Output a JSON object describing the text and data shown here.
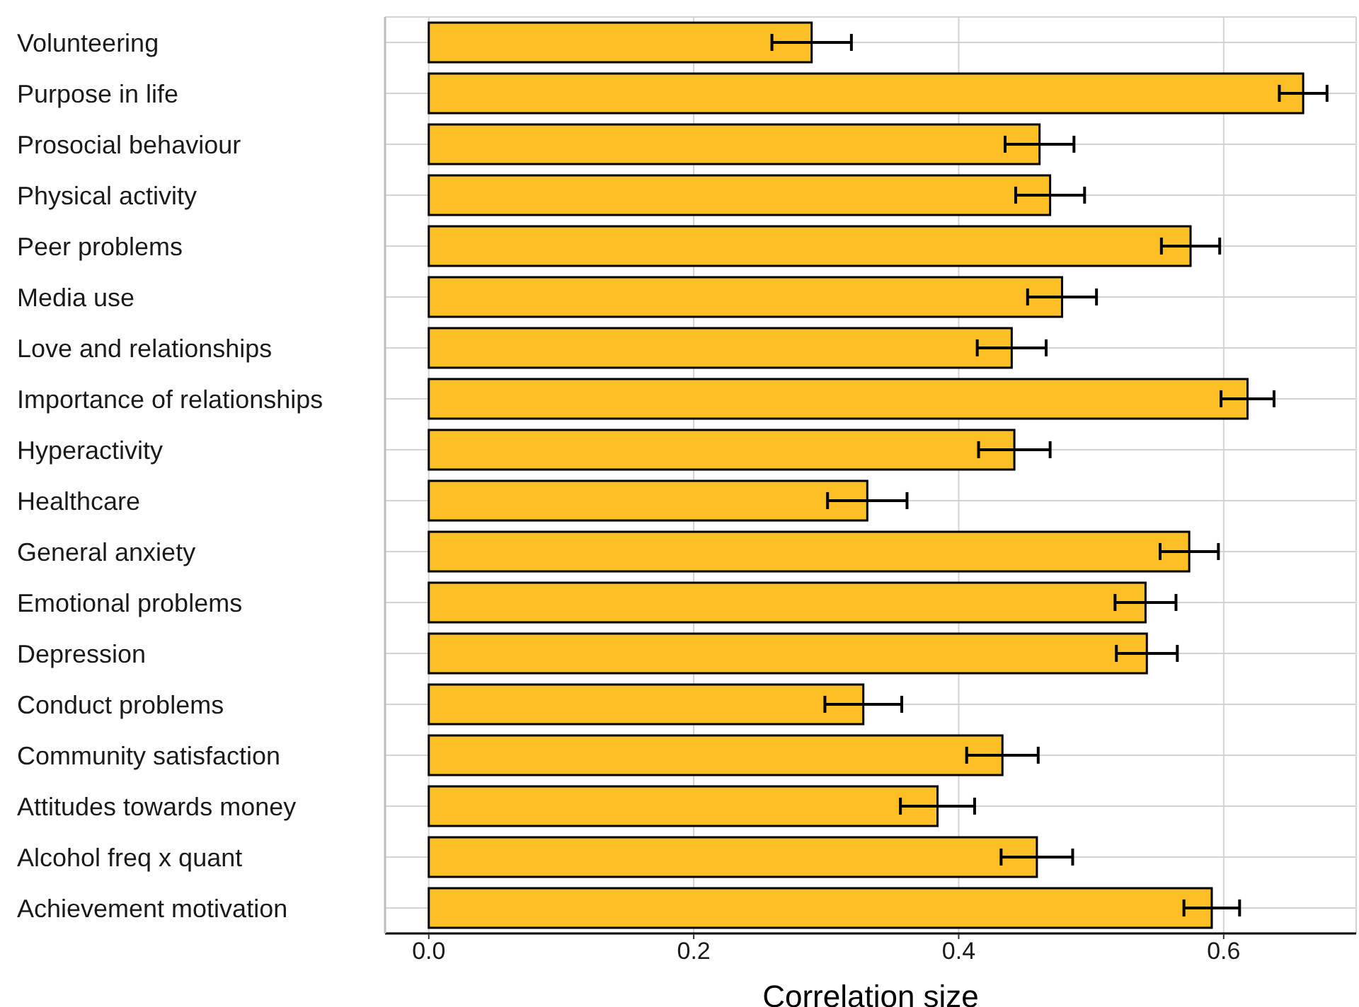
{
  "chart_data": {
    "type": "bar",
    "orientation": "horizontal",
    "xlabel": "Correlation size",
    "categories": [
      "Volunteering",
      "Purpose in life",
      "Prosocial behaviour",
      "Physical activity",
      "Peer problems",
      "Media use",
      "Love and relationships",
      "Importance of relationships",
      "Hyperactivity",
      "Healthcare",
      "General anxiety",
      "Emotional problems",
      "Depression",
      "Conduct problems",
      "Community satisfaction",
      "Attitudes towards money",
      "Alcohol freq x quant",
      "Achievement motivation"
    ],
    "values": [
      0.289,
      0.66,
      0.461,
      0.469,
      0.575,
      0.478,
      0.44,
      0.618,
      0.442,
      0.331,
      0.574,
      0.541,
      0.542,
      0.328,
      0.433,
      0.384,
      0.459,
      0.591
    ],
    "errors": [
      0.03,
      0.018,
      0.026,
      0.026,
      0.022,
      0.026,
      0.026,
      0.02,
      0.027,
      0.03,
      0.022,
      0.023,
      0.023,
      0.029,
      0.027,
      0.028,
      0.027,
      0.021
    ],
    "color": "#fdbf26",
    "xlim": [
      -0.033,
      0.7
    ],
    "xticks": [
      {
        "value": 0,
        "label": "0.0"
      },
      0.2,
      0.4,
      0.6
    ],
    "grid": true
  }
}
